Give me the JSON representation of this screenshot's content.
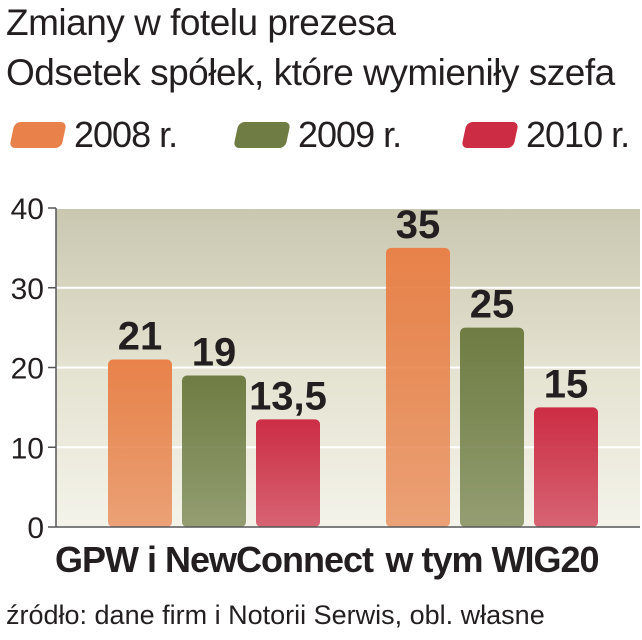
{
  "title": "Zmiany w fotelu prezesa",
  "subtitle": "Odsetek spółek, które wymieniły szefa",
  "source": "źródło: dane firm i Notorii Serwis, obl. własne",
  "colors": {
    "2008": "#e8824a",
    "2009": "#6f7d44",
    "2010": "#cc2d45",
    "plot_bg": "#dedcc8"
  },
  "chart_data": {
    "type": "bar",
    "categories": [
      "GPW i NewConnect",
      "w tym WIG20"
    ],
    "series": [
      {
        "name": "2008 r.",
        "values": [
          21,
          35
        ]
      },
      {
        "name": "2009 r.",
        "values": [
          19,
          25
        ]
      },
      {
        "name": "2010 r.",
        "values": [
          13.5,
          15
        ]
      }
    ],
    "data_labels": [
      [
        "21",
        "35"
      ],
      [
        "19",
        "25"
      ],
      [
        "13,5",
        "15"
      ]
    ],
    "yticks": [
      "0",
      "10",
      "20",
      "30",
      "40"
    ],
    "ylim": [
      0,
      40
    ],
    "title": "Zmiany w fotelu prezesa",
    "subtitle": "Odsetek spółek, które wymieniły szefa",
    "xlabel": "",
    "ylabel": "",
    "grid": true,
    "legend": "top"
  }
}
